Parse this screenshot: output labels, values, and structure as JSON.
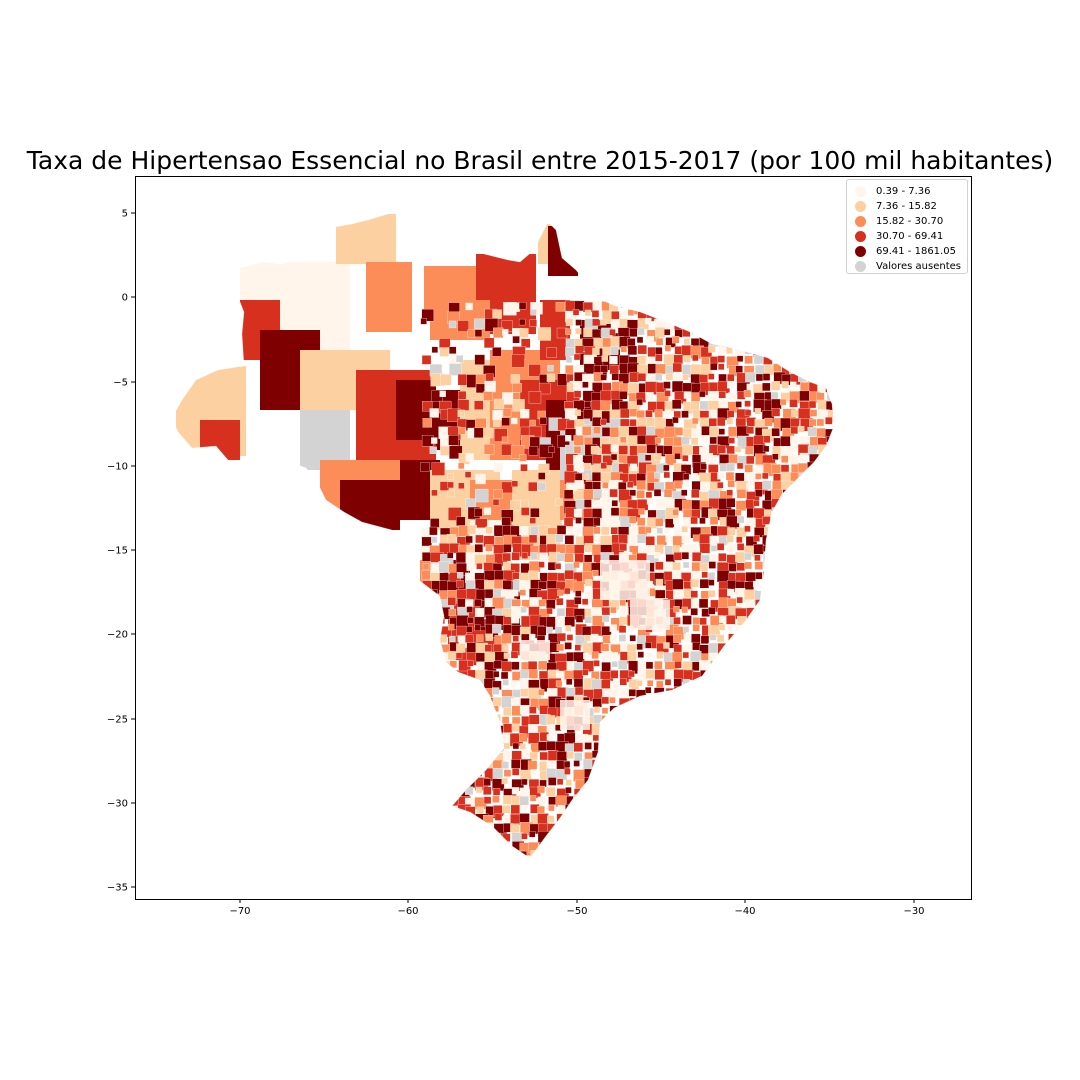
{
  "map": {
    "title": "Taxa de Hipertensao Essencial no Brasil entre 2015-2017 (por 100 mil habitantes)",
    "x_ticks": [
      "−70",
      "−60",
      "−50",
      "−40",
      "−30"
    ],
    "y_ticks": [
      "5",
      "0",
      "−5",
      "−10",
      "−15",
      "−20",
      "−25",
      "−30",
      "−35"
    ],
    "legend": [
      {
        "label": "0.39 - 7.36",
        "color": "#fff5eb"
      },
      {
        "label": "7.36 - 15.82",
        "color": "#fdd0a2"
      },
      {
        "label": "15.82 - 30.70",
        "color": "#fc8d59"
      },
      {
        "label": "30.70 - 69.41",
        "color": "#d7301f"
      },
      {
        "label": "69.41 - 1861.05",
        "color": "#7f0000"
      },
      {
        "label": "Valores ausentes",
        "color": "#d3d3d3"
      }
    ]
  }
}
